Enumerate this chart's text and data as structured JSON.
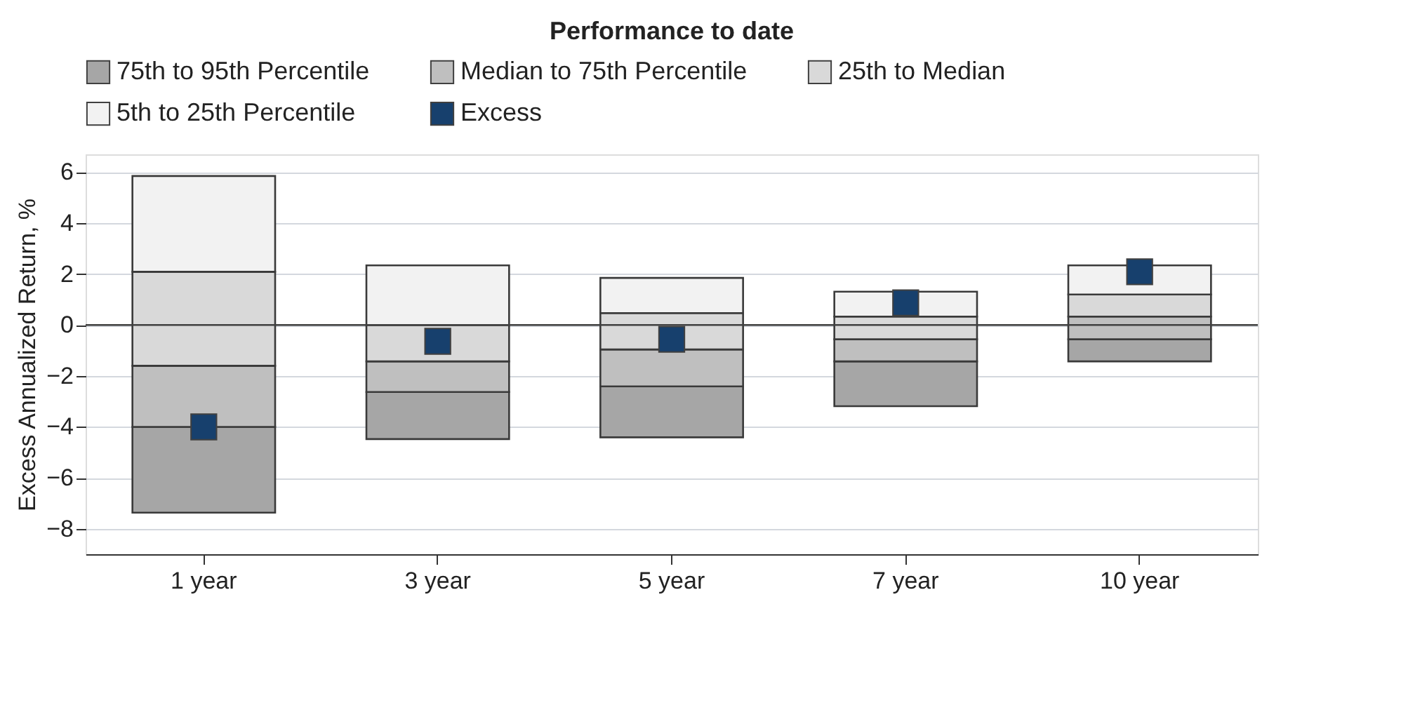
{
  "chart_data": {
    "type": "bar",
    "title": "Performance to date",
    "ylabel": "Excess Annualized Return, %",
    "categories": [
      "1 year",
      "3 year",
      "5 year",
      "7 year",
      "10 year"
    ],
    "series": [
      {
        "name": "75th to 95th Percentile",
        "color": "#a6a6a6",
        "base": [
          -7.37,
          -4.48,
          -4.41,
          -3.19,
          -1.43
        ],
        "values": [
          3.37,
          1.85,
          2.0,
          1.76,
          0.87
        ]
      },
      {
        "name": "Median to 75th Percentile",
        "color": "#bfbfbf",
        "base": [
          -4.0,
          -2.63,
          -2.41,
          -1.43,
          -0.56
        ],
        "values": [
          2.4,
          1.2,
          1.45,
          0.87,
          0.89
        ]
      },
      {
        "name": "25th to Median",
        "color": "#d9d9d9",
        "base": [
          -1.6,
          -1.43,
          -0.96,
          -0.56,
          0.33
        ],
        "values": [
          3.69,
          1.43,
          1.43,
          0.89,
          0.87
        ]
      },
      {
        "name": "5th to 25th Percentile",
        "color": "#f2f2f2",
        "base": [
          2.09,
          0.0,
          0.47,
          0.33,
          1.2
        ],
        "values": [
          3.76,
          2.34,
          1.38,
          0.98,
          1.14
        ]
      },
      {
        "name": "Excess",
        "type": "scatter",
        "marker": "square",
        "color": "#17406d",
        "x": [
          "1 year",
          "3 year",
          "5 year",
          "7 year",
          "10 year"
        ],
        "values": [
          -4.0,
          -0.64,
          -0.56,
          0.87,
          2.09
        ]
      }
    ],
    "ylim": [
      -9,
      6.7
    ],
    "yticks": [
      -8,
      -6,
      -4,
      -2,
      0,
      2,
      4,
      6
    ],
    "ref_lines": [
      {
        "axis": "y",
        "value": 0,
        "color": "#404040"
      }
    ],
    "grid": "y",
    "legend": "top"
  }
}
